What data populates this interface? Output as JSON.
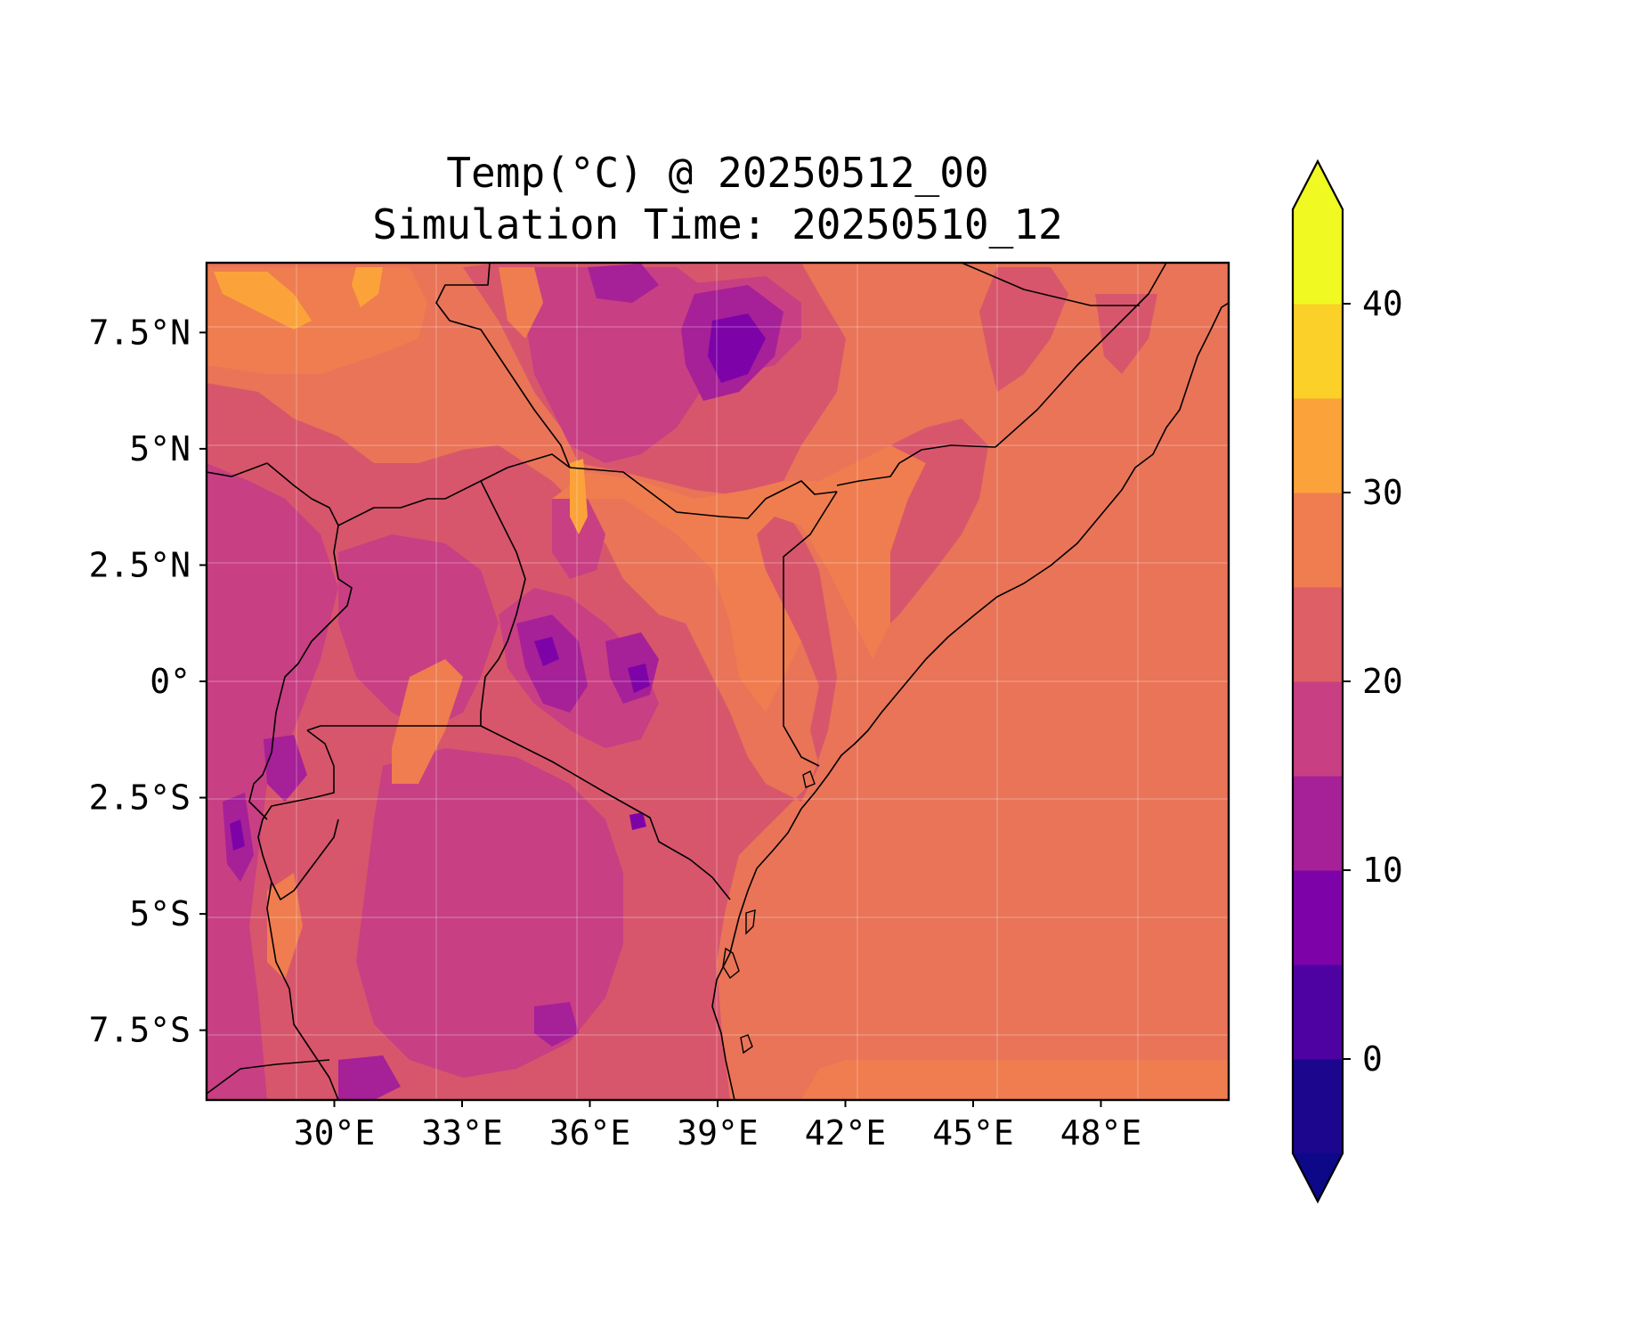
{
  "title": {
    "line1": "Temp(°C) @ 20250512_00",
    "line2": "Simulation Time: 20250510_12"
  },
  "map": {
    "lon_range": [
      27,
      51
    ],
    "lat_range": [
      -9,
      9
    ],
    "x_ticks": [
      {
        "value": 30,
        "label": "30°E"
      },
      {
        "value": 33,
        "label": "33°E"
      },
      {
        "value": 36,
        "label": "36°E"
      },
      {
        "value": 39,
        "label": "39°E"
      },
      {
        "value": 42,
        "label": "42°E"
      },
      {
        "value": 45,
        "label": "45°E"
      },
      {
        "value": 48,
        "label": "48°E"
      }
    ],
    "y_ticks": [
      {
        "value": 7.5,
        "label": "7.5°N"
      },
      {
        "value": 5,
        "label": "5°N"
      },
      {
        "value": 2.5,
        "label": "2.5°N"
      },
      {
        "value": 0,
        "label": "0°"
      },
      {
        "value": -2.5,
        "label": "2.5°S"
      },
      {
        "value": -5,
        "label": "5°S"
      },
      {
        "value": -7.5,
        "label": "7.5°S"
      }
    ],
    "gridlines": true,
    "ocean_color": "#e97458"
  },
  "colorbar": {
    "range": [
      -5,
      45
    ],
    "step": 5,
    "extend": "both",
    "colormap": "plasma",
    "colors": [
      "#1b068d",
      "#4f02a2",
      "#7d03a8",
      "#a62098",
      "#c83f83",
      "#de5f65",
      "#ef7d4f",
      "#fba33a",
      "#fbd028",
      "#f0f921"
    ],
    "under_color": "#0d0887",
    "over_color": "#f0f921",
    "ticks": [
      {
        "value": 0,
        "label": "0"
      },
      {
        "value": 10,
        "label": "10"
      },
      {
        "value": 20,
        "label": "20"
      },
      {
        "value": 30,
        "label": "30"
      },
      {
        "value": 40,
        "label": "40"
      }
    ]
  }
}
